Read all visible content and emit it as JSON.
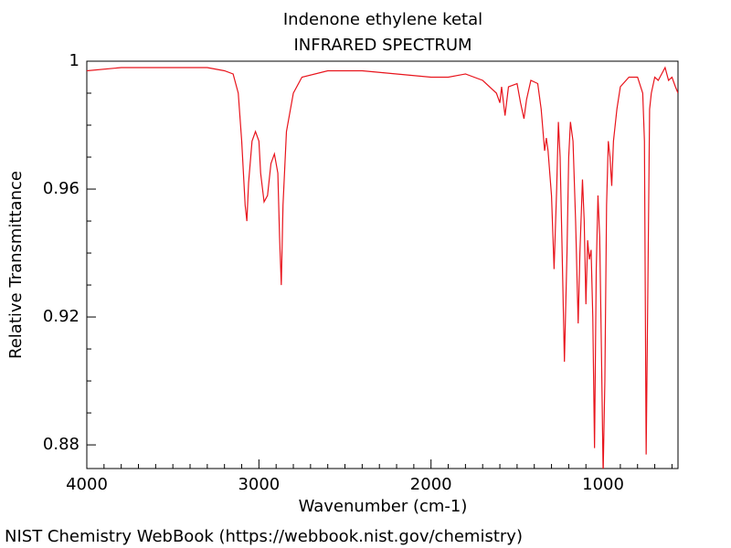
{
  "chart_data": {
    "type": "line",
    "title": "Indenone ethylene ketal",
    "subtitle": "INFRARED SPECTRUM",
    "xlabel": "Wavenumber (cm-1)",
    "ylabel": "Relative Transmittance",
    "x": [
      4000,
      3800,
      3600,
      3400,
      3300,
      3200,
      3150,
      3120,
      3100,
      3080,
      3070,
      3060,
      3040,
      3020,
      3000,
      2990,
      2970,
      2950,
      2930,
      2910,
      2890,
      2880,
      2870,
      2860,
      2840,
      2800,
      2750,
      2600,
      2400,
      2200,
      2000,
      1900,
      1800,
      1700,
      1620,
      1600,
      1590,
      1570,
      1550,
      1500,
      1480,
      1460,
      1445,
      1420,
      1380,
      1360,
      1340,
      1330,
      1320,
      1300,
      1285,
      1270,
      1260,
      1250,
      1240,
      1225,
      1210,
      1200,
      1190,
      1175,
      1160,
      1145,
      1135,
      1120,
      1110,
      1100,
      1090,
      1080,
      1070,
      1060,
      1050,
      1040,
      1030,
      1020,
      1010,
      1000,
      990,
      980,
      970,
      960,
      950,
      940,
      920,
      900,
      850,
      800,
      770,
      760,
      750,
      740,
      730,
      720,
      700,
      680,
      660,
      640,
      620,
      600,
      580,
      565
    ],
    "series": [
      {
        "name": "Indenone ethylene ketal",
        "color": "#e8141c",
        "values": [
          0.997,
          0.998,
          0.998,
          0.998,
          0.998,
          0.997,
          0.996,
          0.99,
          0.975,
          0.955,
          0.95,
          0.962,
          0.975,
          0.978,
          0.975,
          0.965,
          0.956,
          0.958,
          0.968,
          0.971,
          0.965,
          0.945,
          0.93,
          0.955,
          0.978,
          0.99,
          0.995,
          0.997,
          0.997,
          0.996,
          0.995,
          0.995,
          0.996,
          0.994,
          0.99,
          0.987,
          0.992,
          0.983,
          0.992,
          0.993,
          0.987,
          0.982,
          0.988,
          0.994,
          0.993,
          0.985,
          0.972,
          0.976,
          0.972,
          0.958,
          0.935,
          0.96,
          0.981,
          0.97,
          0.945,
          0.906,
          0.94,
          0.97,
          0.981,
          0.975,
          0.95,
          0.918,
          0.94,
          0.963,
          0.95,
          0.924,
          0.944,
          0.938,
          0.941,
          0.92,
          0.879,
          0.935,
          0.958,
          0.945,
          0.91,
          0.871,
          0.9,
          0.955,
          0.975,
          0.97,
          0.961,
          0.975,
          0.985,
          0.992,
          0.995,
          0.995,
          0.99,
          0.975,
          0.877,
          0.93,
          0.985,
          0.99,
          0.995,
          0.994,
          0.996,
          0.998,
          0.994,
          0.995,
          0.992,
          0.99
        ]
      }
    ],
    "xlim": [
      4000,
      565
    ],
    "ylim": [
      0.8726,
      1
    ],
    "xticks": [
      4000,
      3000,
      2000,
      1000
    ],
    "yticks": [
      1,
      0.96,
      0.92,
      0.88
    ],
    "xminorticks": [
      3900,
      3800,
      3700,
      3600,
      3500,
      3400,
      3300,
      3200,
      3100,
      2900,
      2800,
      2700,
      2600,
      2500,
      2400,
      2300,
      2200,
      2100,
      1900,
      1800,
      1700,
      1600,
      1500,
      1400,
      1300,
      1200,
      1100,
      900,
      800,
      700,
      600
    ],
    "yminorticks": [
      0.99,
      0.98,
      0.97,
      0.95,
      0.94,
      0.93,
      0.91,
      0.9,
      0.89
    ],
    "grid": false
  },
  "footer": "NIST Chemistry WebBook (https://webbook.nist.gov/chemistry)"
}
